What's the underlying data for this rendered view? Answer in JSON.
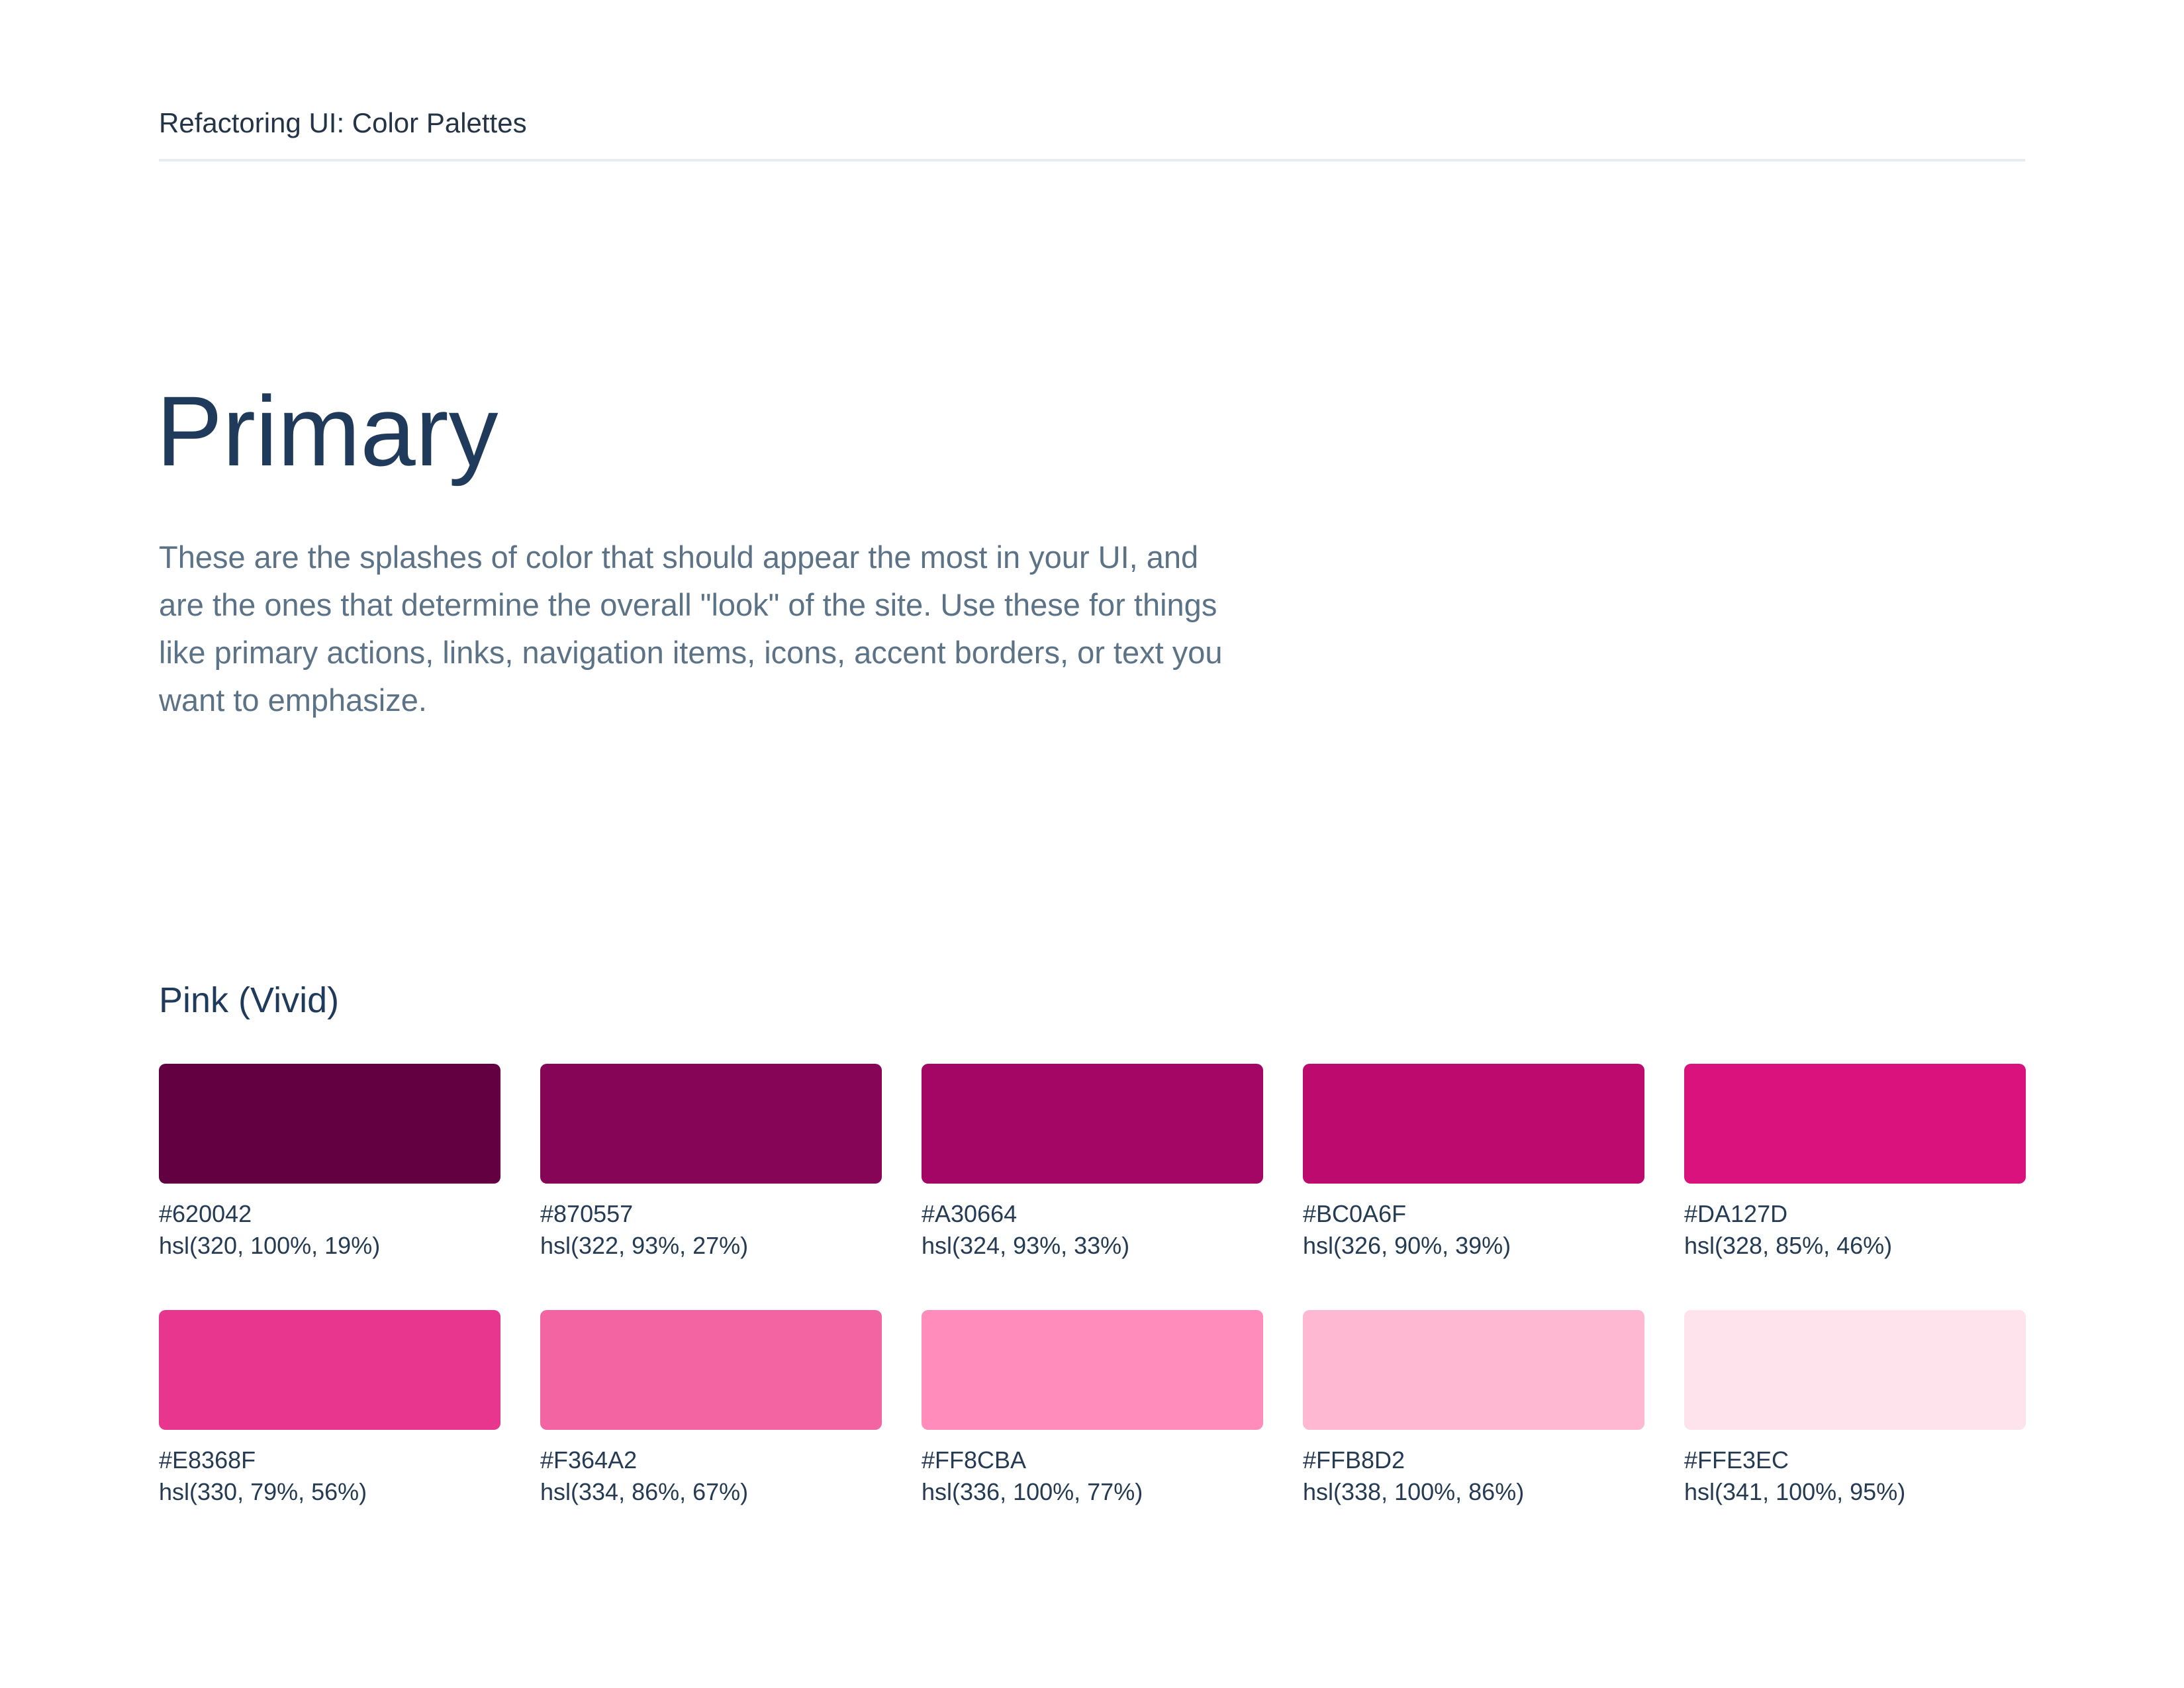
{
  "header": {
    "title": "Refactoring UI: Color Palettes"
  },
  "section": {
    "title": "Primary",
    "description": "These are the splashes of color that should appear the most in your UI, and are the ones that determine the overall \"look\" of the site. Use these for things like primary actions, links, navigation items, icons, accent borders, or text you want to emphasize."
  },
  "palette": {
    "name": "Pink (Vivid)",
    "swatches": [
      {
        "hex": "#620042",
        "hsl": "hsl(320, 100%, 19%)"
      },
      {
        "hex": "#870557",
        "hsl": "hsl(322, 93%, 27%)"
      },
      {
        "hex": "#A30664",
        "hsl": "hsl(324, 93%, 33%)"
      },
      {
        "hex": "#BC0A6F",
        "hsl": "hsl(326, 90%, 39%)"
      },
      {
        "hex": "#DA127D",
        "hsl": "hsl(328, 85%, 46%)"
      },
      {
        "hex": "#E8368F",
        "hsl": "hsl(330, 79%, 56%)"
      },
      {
        "hex": "#F364A2",
        "hsl": "hsl(334, 86%, 67%)"
      },
      {
        "hex": "#FF8CBA",
        "hsl": "hsl(336, 100%, 77%)"
      },
      {
        "hex": "#FFB8D2",
        "hsl": "hsl(338, 100%, 86%)"
      },
      {
        "hex": "#FFE3EC",
        "hsl": "hsl(341, 100%, 95%)"
      }
    ]
  }
}
